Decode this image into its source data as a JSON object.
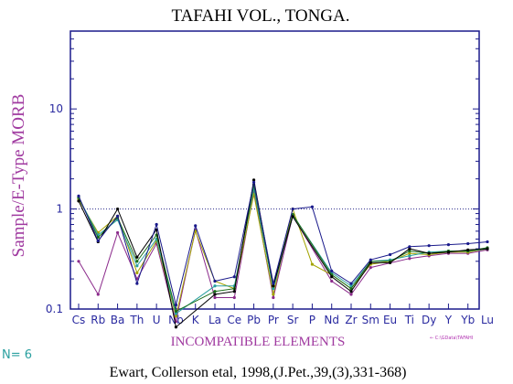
{
  "chart_data": {
    "type": "line",
    "title": "TAFAHI VOL., TONGA.",
    "ylabel": "Sample/E-Type MORB",
    "xlabel": "INCOMPATIBLE ELEMENTS",
    "yscale": "log",
    "ylim": [
      0.1,
      60
    ],
    "yticks": [
      {
        "value": 0.1,
        "label": "0.1"
      },
      {
        "value": 1,
        "label": "1"
      },
      {
        "value": 10,
        "label": "10"
      }
    ],
    "reference_line": 1,
    "categories": [
      "Cs",
      "Rb",
      "Ba",
      "Th",
      "U",
      "Nb",
      "K",
      "La",
      "Ce",
      "Pb",
      "Pr",
      "Sr",
      "P",
      "Nd",
      "Zr",
      "Sm",
      "Eu",
      "Ti",
      "Dy",
      "Y",
      "Yb",
      "Lu"
    ],
    "tick_labels": [
      "Cs",
      "Rb",
      "Ba",
      "Th",
      "U",
      "Nb",
      "K",
      "La",
      "Ce",
      "Pb",
      "Pr",
      "Sr",
      "P",
      "Nd",
      "Zr",
      "Sm",
      "Eu",
      "Ti",
      "Dy",
      "Y",
      "Yb",
      "Lu"
    ],
    "series": [
      {
        "color": "#8b2a8b",
        "values": [
          0.3,
          0.14,
          0.58,
          0.2,
          0.45,
          0.075,
          0.62,
          0.13,
          0.13,
          1.5,
          0.13,
          0.86,
          null,
          0.19,
          0.14,
          0.26,
          null,
          0.32,
          0.34,
          0.36,
          0.36,
          0.39
        ]
      },
      {
        "color": "#a3a300",
        "values": [
          1.25,
          0.58,
          0.85,
          0.23,
          0.48,
          0.085,
          0.6,
          0.19,
          0.16,
          1.4,
          0.14,
          1.0,
          0.28,
          0.22,
          0.16,
          0.28,
          0.3,
          0.36,
          0.35,
          0.37,
          0.37,
          0.4
        ]
      },
      {
        "color": "#2aa0a0",
        "values": [
          1.3,
          0.55,
          0.78,
          0.27,
          0.5,
          0.09,
          null,
          0.17,
          0.17,
          1.6,
          0.16,
          0.87,
          null,
          0.23,
          0.17,
          0.3,
          0.31,
          0.34,
          0.37,
          0.38,
          0.38,
          0.4
        ]
      },
      {
        "color": "#1a6e1a",
        "values": [
          1.3,
          0.52,
          0.82,
          0.3,
          0.55,
          0.095,
          null,
          0.15,
          0.16,
          1.75,
          0.17,
          0.88,
          null,
          0.22,
          0.16,
          0.3,
          0.3,
          0.38,
          0.36,
          0.38,
          0.38,
          0.41
        ]
      },
      {
        "color": "#000000",
        "values": [
          1.2,
          0.47,
          1.0,
          0.33,
          0.62,
          0.066,
          null,
          0.14,
          0.15,
          1.95,
          0.17,
          0.84,
          null,
          0.21,
          0.15,
          0.29,
          0.29,
          0.4,
          0.36,
          0.37,
          0.39,
          0.4
        ]
      },
      {
        "color": "#1a1a8b",
        "values": [
          1.35,
          0.48,
          0.85,
          0.18,
          0.7,
          0.11,
          0.68,
          0.19,
          0.21,
          1.85,
          0.18,
          1.0,
          1.05,
          0.24,
          0.18,
          0.31,
          0.35,
          0.42,
          0.43,
          0.44,
          0.45,
          0.47
        ]
      }
    ]
  },
  "n_label": "N= 6",
  "source_note": "← C:\\GData\\TAFAHI",
  "citation": "Ewart, Collerson etal, 1998,(J.Pet.,39,(3),331-368)",
  "colors": {
    "axis": "#1a1a8b",
    "reference": "#2a2a8b"
  }
}
